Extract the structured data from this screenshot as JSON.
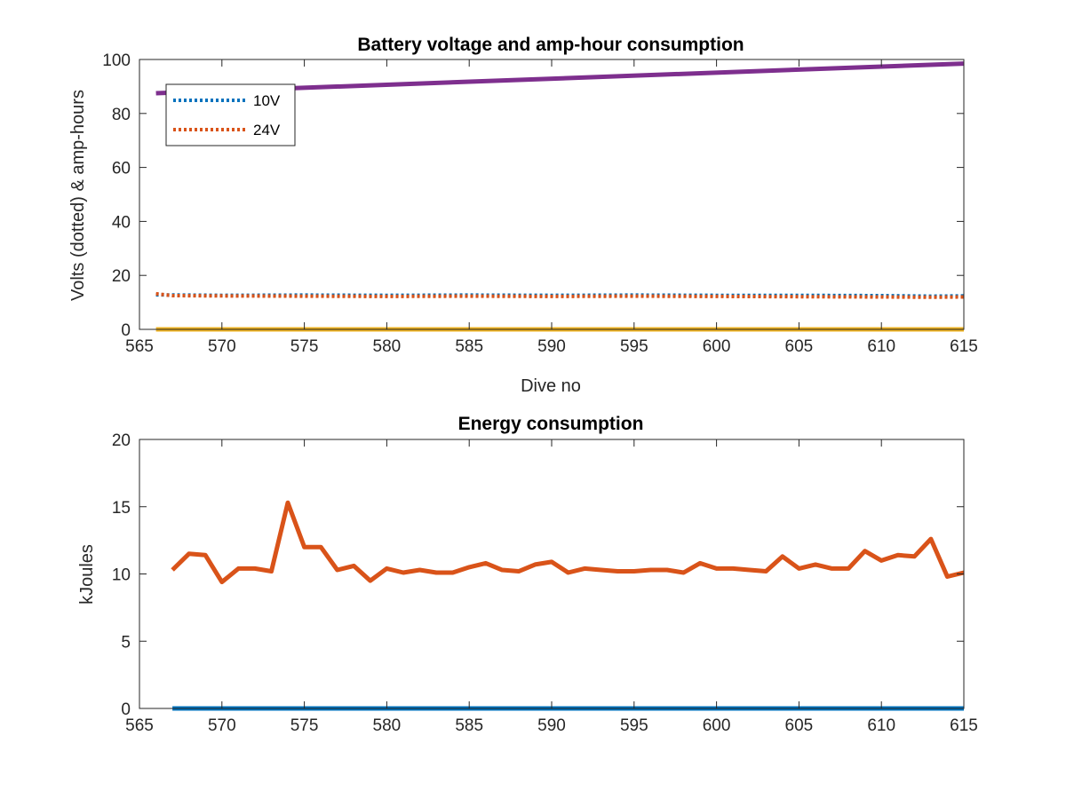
{
  "chart_data": [
    {
      "type": "line",
      "title": "Battery voltage and amp-hour consumption",
      "xlabel": "Dive no",
      "ylabel": "Volts (dotted) & amp-hours",
      "xlim": [
        565,
        615
      ],
      "ylim": [
        0,
        100
      ],
      "xticks": [
        565,
        570,
        575,
        580,
        585,
        590,
        595,
        600,
        605,
        610,
        615
      ],
      "yticks": [
        0,
        20,
        40,
        60,
        80,
        100
      ],
      "grid": false,
      "legend_position": "top-left",
      "series": [
        {
          "name": "10V",
          "color": "#0072BD",
          "style": "dotted",
          "in_legend": true,
          "x": [
            566,
            570,
            575,
            580,
            585,
            590,
            595,
            600,
            605,
            610,
            613,
            615
          ],
          "y": [
            12.8,
            12.6,
            12.7,
            12.6,
            12.7,
            12.6,
            12.7,
            12.6,
            12.6,
            12.5,
            12.3,
            12.4
          ]
        },
        {
          "name": "24V",
          "color": "#D95319",
          "style": "dotted",
          "in_legend": true,
          "x": [
            566,
            567,
            570,
            575,
            580,
            585,
            590,
            595,
            600,
            605,
            610,
            613,
            615
          ],
          "y": [
            13.2,
            12.5,
            12.4,
            12.3,
            12.2,
            12.3,
            12.2,
            12.3,
            12.2,
            12.1,
            12.0,
            11.9,
            12.0
          ]
        },
        {
          "color": "#7E2F8E",
          "style": "solid",
          "in_legend": false,
          "x": [
            566,
            615
          ],
          "y": [
            87.5,
            98.5
          ]
        },
        {
          "color": "#EDB120",
          "style": "solid",
          "in_legend": false,
          "x": [
            566,
            615
          ],
          "y": [
            0,
            0
          ]
        }
      ]
    },
    {
      "type": "line",
      "title": "Energy consumption",
      "xlabel": "",
      "ylabel": "kJoules",
      "xlim": [
        565,
        615
      ],
      "ylim": [
        0,
        20
      ],
      "xticks": [
        565,
        570,
        575,
        580,
        585,
        590,
        595,
        600,
        605,
        610,
        615
      ],
      "yticks": [
        0,
        5,
        10,
        15,
        20
      ],
      "grid": false,
      "series": [
        {
          "color": "#D95319",
          "style": "solid",
          "x": [
            567,
            568,
            569,
            570,
            571,
            572,
            573,
            574,
            575,
            576,
            577,
            578,
            579,
            580,
            581,
            582,
            583,
            584,
            585,
            586,
            587,
            588,
            589,
            590,
            591,
            592,
            593,
            594,
            595,
            596,
            597,
            598,
            599,
            600,
            601,
            602,
            603,
            604,
            605,
            606,
            607,
            608,
            609,
            610,
            611,
            612,
            613,
            614,
            615
          ],
          "y": [
            10.3,
            11.5,
            11.4,
            9.4,
            10.4,
            10.4,
            10.2,
            15.3,
            12.0,
            12.0,
            10.3,
            10.6,
            9.5,
            10.4,
            10.1,
            10.3,
            10.1,
            10.1,
            10.5,
            10.8,
            10.3,
            10.2,
            10.7,
            10.9,
            10.1,
            10.4,
            10.3,
            10.2,
            10.2,
            10.3,
            10.3,
            10.1,
            10.8,
            10.4,
            10.4,
            10.3,
            10.2,
            11.3,
            10.4,
            10.7,
            10.4,
            10.4,
            11.7,
            11.0,
            11.4,
            11.3,
            12.6,
            9.8,
            10.1
          ]
        },
        {
          "color": "#0072BD",
          "style": "solid",
          "x": [
            567,
            615
          ],
          "y": [
            0,
            0
          ]
        }
      ]
    }
  ]
}
